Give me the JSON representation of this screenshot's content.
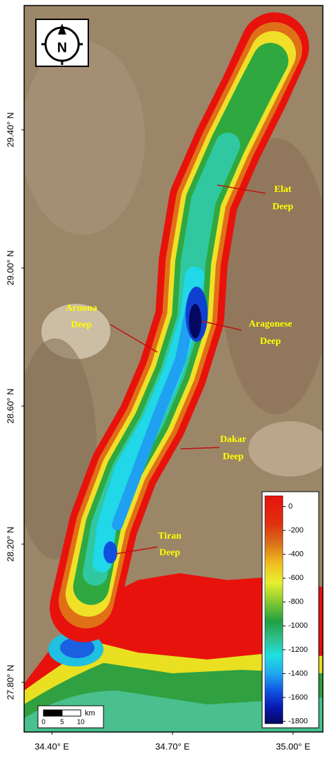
{
  "north_arrow": "N",
  "lat_axis": {
    "lim": [
      27.656,
      29.76
    ],
    "ticks": [
      {
        "value": 29.4,
        "label": "29.40° N"
      },
      {
        "value": 29.0,
        "label": "29.00° N"
      },
      {
        "value": 28.6,
        "label": "28.60° N"
      },
      {
        "value": 28.2,
        "label": "28.20° N"
      },
      {
        "value": 27.8,
        "label": "27.80° N"
      }
    ]
  },
  "lon_axis": {
    "lim": [
      34.331,
      35.074
    ],
    "ticks": [
      {
        "value": 34.4,
        "label": "34.40° E"
      },
      {
        "value": 34.7,
        "label": "34.70° E"
      },
      {
        "value": 35.0,
        "label": "35.00° E"
      }
    ]
  },
  "annotations": [
    {
      "lines": [
        "Elat",
        "Deep"
      ]
    },
    {
      "lines": [
        "Arnona",
        "Deep"
      ]
    },
    {
      "lines": [
        "Aragonese",
        "Deep"
      ]
    },
    {
      "lines": [
        "Dakar",
        "Deep"
      ]
    },
    {
      "lines": [
        "Tiran",
        "Deep"
      ]
    }
  ],
  "colorbar": {
    "lim": [
      90,
      -1820
    ],
    "ticks": [
      0,
      -200,
      -400,
      -600,
      -800,
      -1000,
      -1200,
      -1400,
      -1600,
      -1800
    ]
  },
  "scale_bar": {
    "ticks": [
      0,
      5,
      10
    ],
    "unit": "km"
  }
}
